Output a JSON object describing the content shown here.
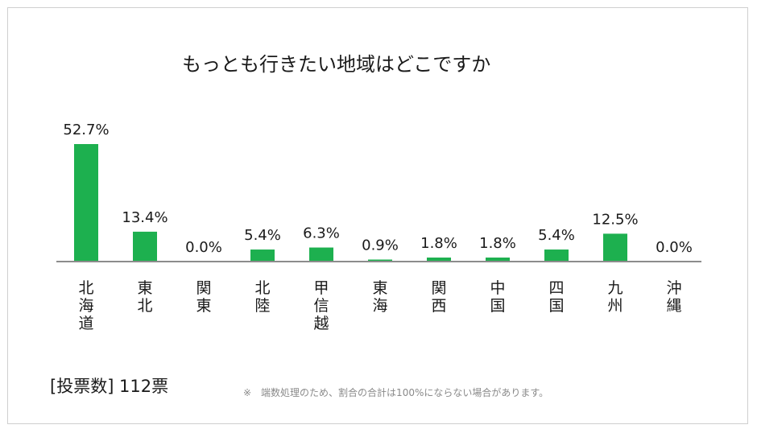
{
  "vote_count": "[投票数] 112票",
  "footnote": "※　端数処理のため、割合の合計は100%にならない場合があります。",
  "colors": {
    "bar": "#1db04f",
    "axis": "#8c8c8c",
    "text": "#1a1a1a"
  },
  "chart_data": {
    "type": "bar",
    "title": "もっとも行きたい地域はどこですか",
    "xlabel": "",
    "ylabel": "",
    "categories": [
      "北海道",
      "東北",
      "関東",
      "北陸",
      "甲信越",
      "東海",
      "関西",
      "中国",
      "四国",
      "九州",
      "沖縄"
    ],
    "values": [
      52.7,
      13.4,
      0.0,
      5.4,
      6.3,
      0.9,
      1.8,
      1.8,
      5.4,
      12.5,
      0.0
    ],
    "value_labels": [
      "52.7%",
      "13.4%",
      "0.0%",
      "5.4%",
      "6.3%",
      "0.9%",
      "1.8%",
      "1.8%",
      "5.4%",
      "12.5%",
      "0.0%"
    ],
    "ylim": [
      0,
      52.7
    ],
    "grid": false,
    "legend": "none"
  }
}
